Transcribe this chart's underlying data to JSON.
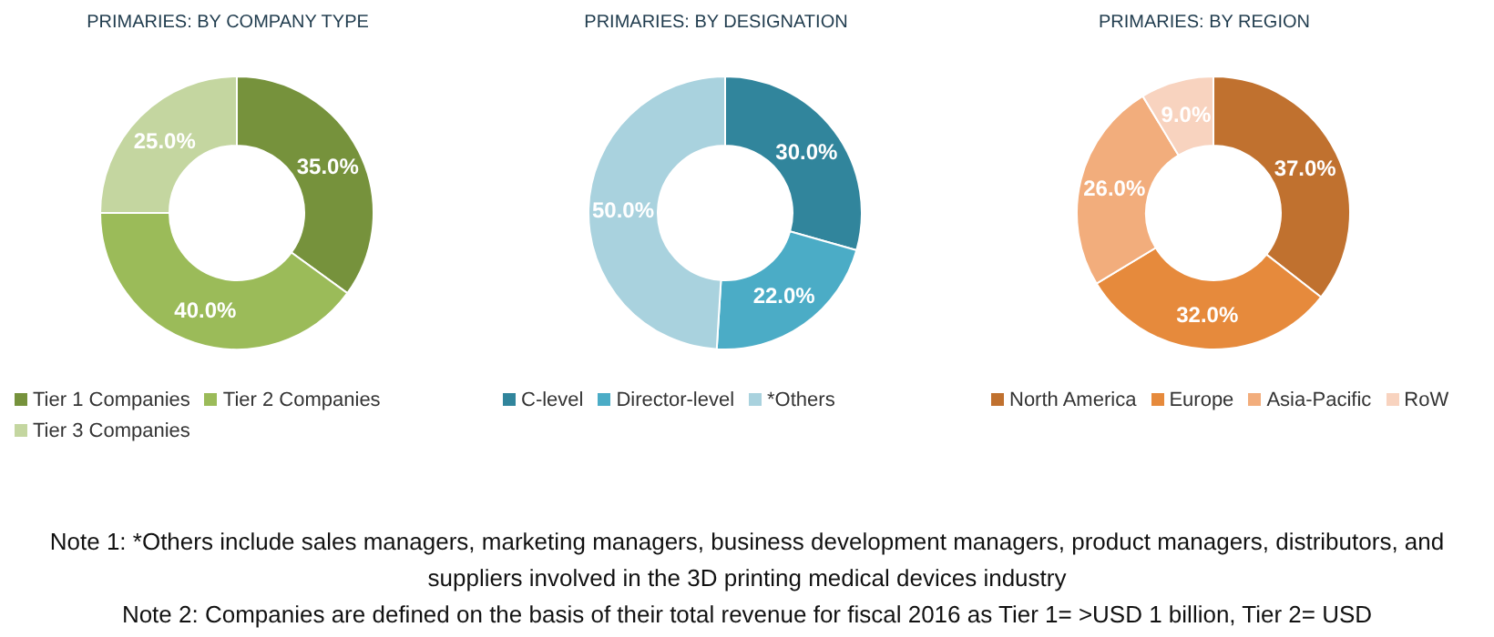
{
  "chart_data": [
    {
      "type": "donut",
      "title": "PRIMARIES: BY COMPANY TYPE",
      "categories": [
        "Tier 1 Companies",
        "Tier 2 Companies",
        "Tier 3 Companies"
      ],
      "values": [
        35,
        40,
        25
      ],
      "value_labels": [
        "35.0%",
        "40.0%",
        "25.0%"
      ],
      "colors": [
        "#76923c",
        "#9bbb59",
        "#c4d6a0"
      ],
      "legend": "bottom"
    },
    {
      "type": "donut",
      "title": "PRIMARIES: BY DESIGNATION",
      "categories": [
        "C-level",
        "Director-level",
        "*Others"
      ],
      "values": [
        30,
        22,
        50
      ],
      "value_labels": [
        "30.0%",
        "22.0%",
        "50.0%"
      ],
      "colors": [
        "#31859c",
        "#4bacc6",
        "#a9d2de"
      ],
      "legend": "bottom"
    },
    {
      "type": "donut",
      "title": "PRIMARIES: BY REGION",
      "categories": [
        "North America",
        "Europe",
        "Asia-Pacific",
        "RoW"
      ],
      "values": [
        37,
        32,
        26,
        9
      ],
      "value_labels": [
        "37.0%",
        "32.0%",
        "26.0%",
        "9.0%"
      ],
      "colors": [
        "#c0712f",
        "#e68a3c",
        "#f2ad7c",
        "#f8d3bf"
      ],
      "legend": "bottom"
    },
    {
      "type": "other",
      "annotations": [
        "Note 1: *Others include sales managers, marketing managers, business development managers, product managers, distributors, and suppliers involved in the 3D printing medical devices industry",
        "Note 2: Companies are defined on the basis of their total revenue for fiscal 2016 as Tier 1= >USD 1 billion, Tier 2= USD"
      ]
    }
  ]
}
